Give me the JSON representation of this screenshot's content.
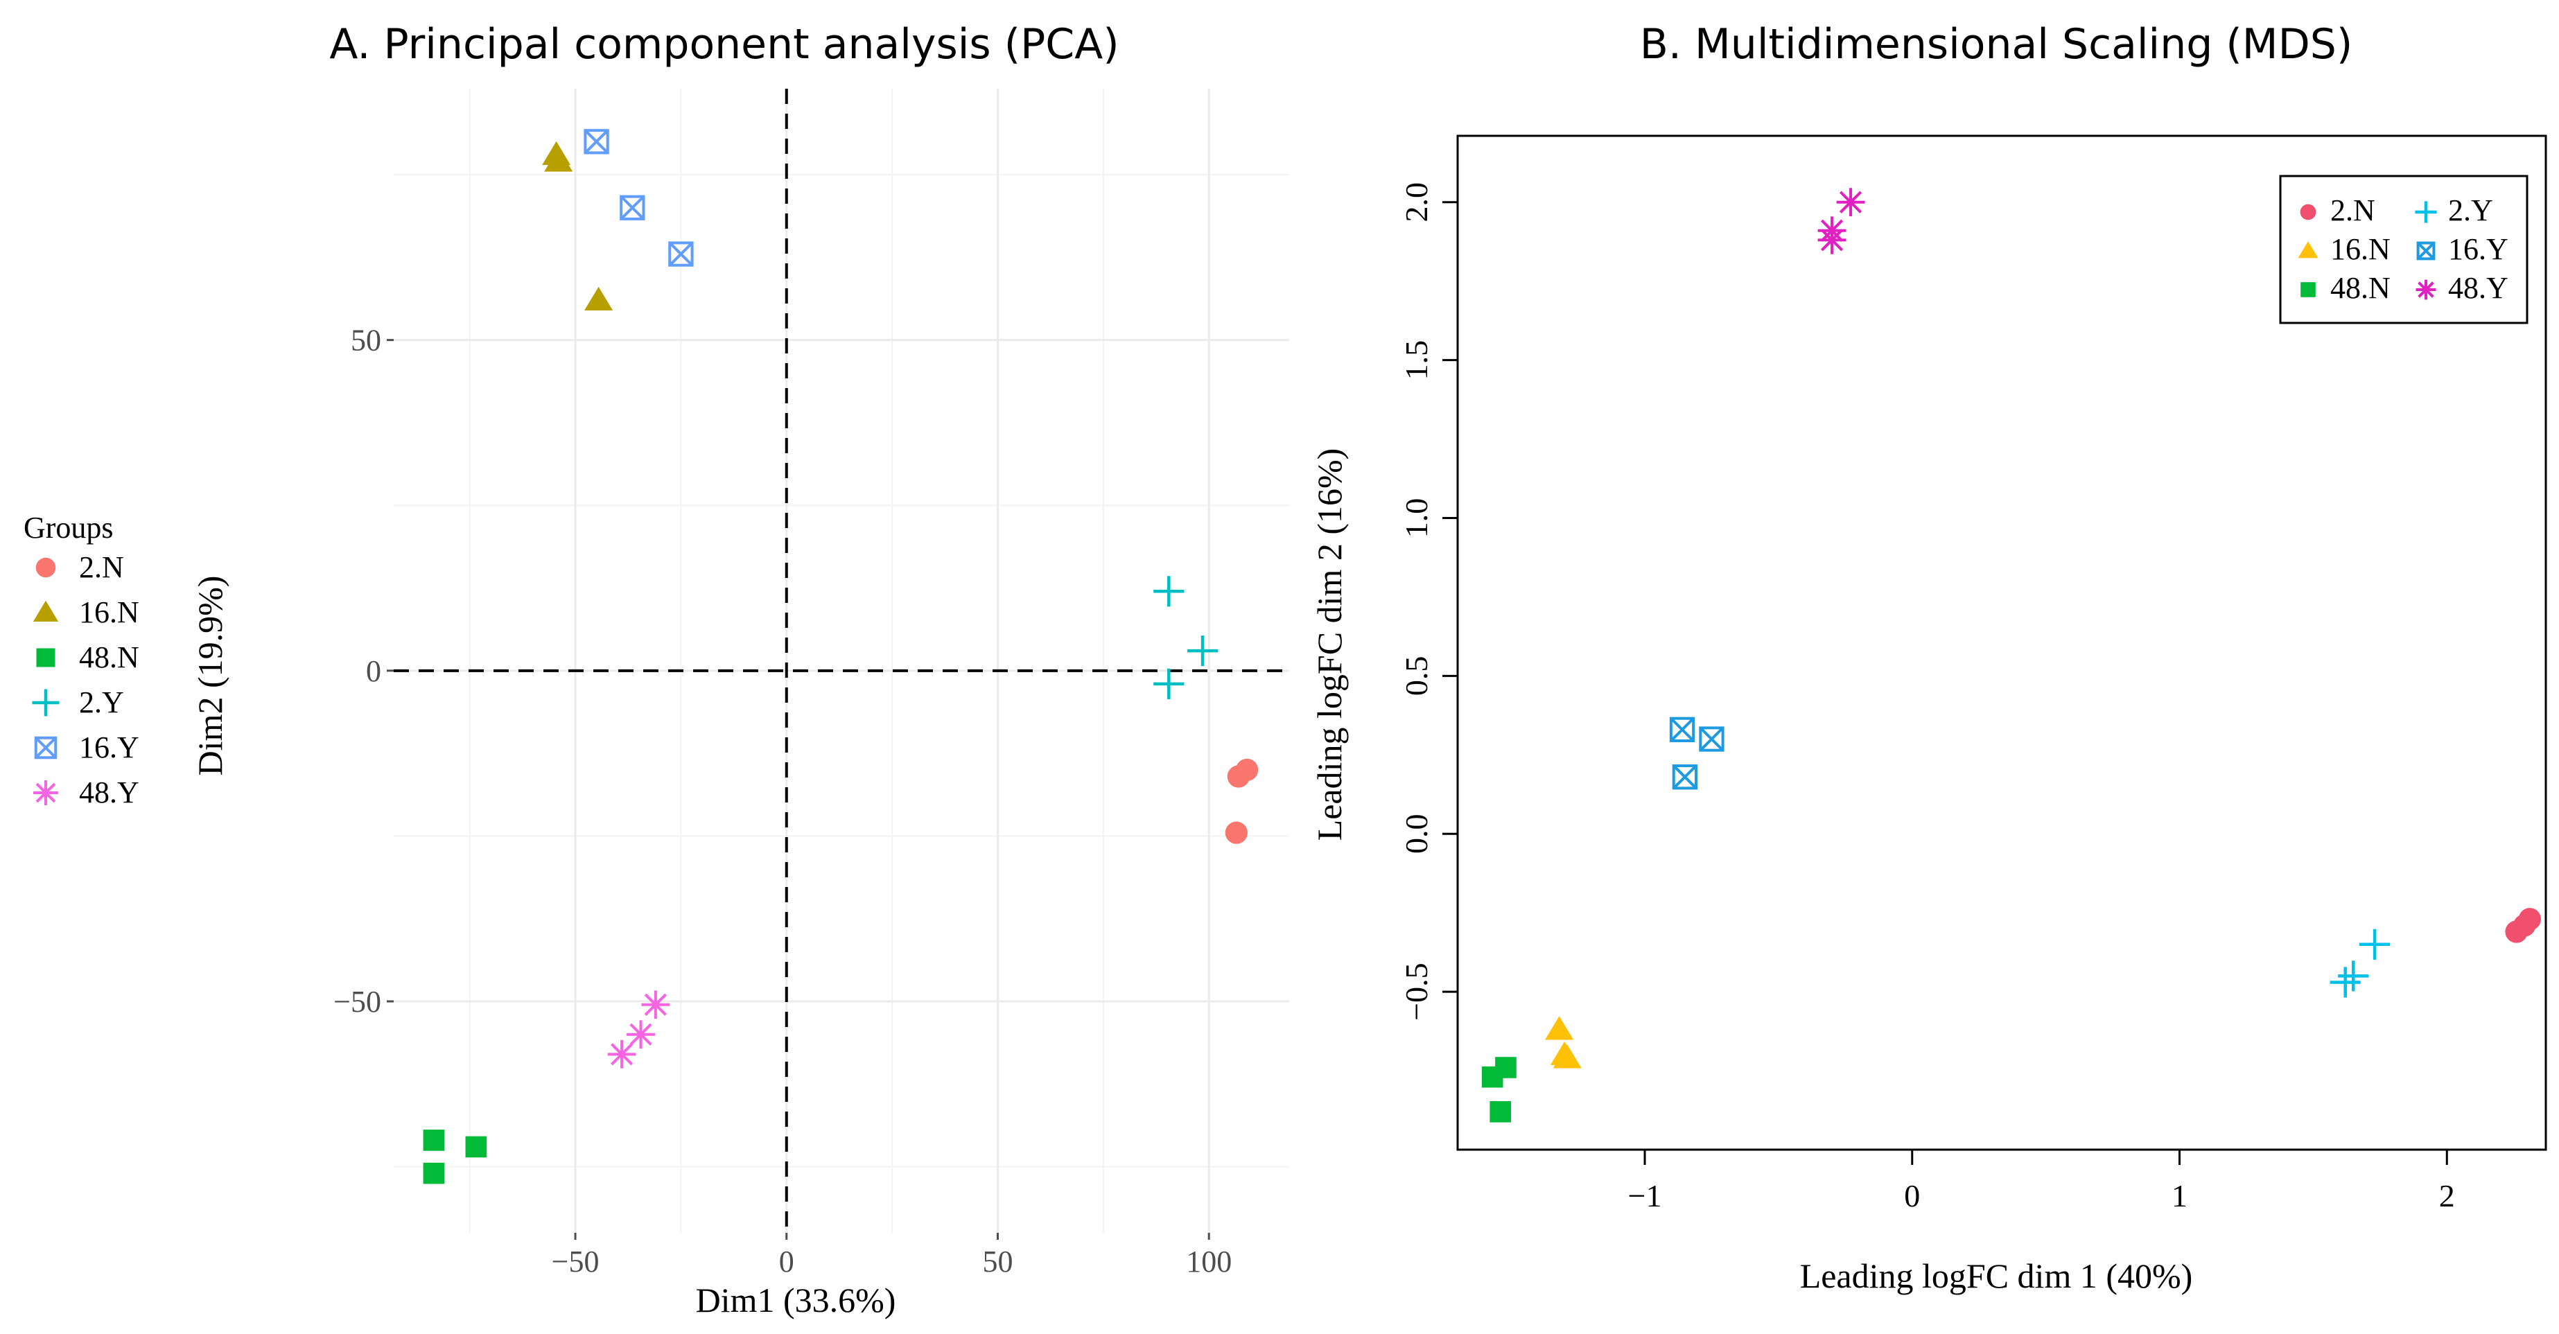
{
  "colors": {
    "2.N_pca": "#F8766D",
    "16.N_pca": "#B79F00",
    "48.N_pca": "#00BA38",
    "2.Y_pca": "#00BFC4",
    "16.Y_pca": "#619CFF",
    "48.Y_pca": "#F564E3",
    "2.N_mds": "#F0506E",
    "16.N_mds": "#FFC107",
    "48.N_mds": "#00BA38",
    "2.Y_mds": "#00BFE8",
    "16.Y_mds": "#1E9BE0",
    "48.Y_mds": "#E020C0"
  },
  "chart_data": [
    {
      "type": "scatter",
      "title": "A. Principal component analysis (PCA)",
      "xlabel": "Dim1 (33.6%)",
      "ylabel": "Dim2 (19.9%)",
      "xlim": [
        -93,
        119
      ],
      "ylim": [
        -85,
        88
      ],
      "xticks": [
        -50,
        0,
        50,
        100
      ],
      "yticks": [
        -50,
        0,
        50
      ],
      "xtick_labels": [
        "−50",
        "0",
        "50",
        "100"
      ],
      "ytick_labels": [
        "−50",
        "0",
        "50"
      ],
      "grid": true,
      "reference_lines": {
        "x": 0,
        "y": 0,
        "style": "dashed"
      },
      "legend": {
        "title": "Groups",
        "placement": "left"
      },
      "series": [
        {
          "name": "2.N",
          "marker": "circle",
          "points": [
            [
              107,
              -16
            ],
            [
              109,
              -15
            ],
            [
              106.5,
              -24.5
            ]
          ]
        },
        {
          "name": "16.N",
          "marker": "triangle",
          "points": [
            [
              -54.5,
              78
            ],
            [
              -54,
              77
            ],
            [
              -44.5,
              56
            ]
          ]
        },
        {
          "name": "48.N",
          "marker": "square",
          "points": [
            [
              -83.5,
              -71
            ],
            [
              -73.5,
              -72
            ],
            [
              -83.5,
              -76
            ]
          ]
        },
        {
          "name": "2.Y",
          "marker": "plus",
          "points": [
            [
              90.5,
              12
            ],
            [
              98.5,
              3
            ],
            [
              90.5,
              -2
            ]
          ]
        },
        {
          "name": "16.Y",
          "marker": "boxx",
          "points": [
            [
              -45,
              80
            ],
            [
              -36.5,
              70
            ],
            [
              -25,
              63
            ]
          ]
        },
        {
          "name": "48.Y",
          "marker": "star",
          "points": [
            [
              -31,
              -50.5
            ],
            [
              -34.5,
              -55
            ],
            [
              -39,
              -58
            ]
          ]
        }
      ]
    },
    {
      "type": "scatter",
      "title": "B. Multidimensional Scaling (MDS)",
      "xlabel": "Leading logFC dim 1 (40%)",
      "ylabel": "Leading logFC dim 2 (16%)",
      "xlim": [
        -1.7,
        2.37
      ],
      "ylim": [
        -1.0,
        2.21
      ],
      "xticks": [
        -1,
        0,
        1,
        2
      ],
      "yticks": [
        -0.5,
        0.0,
        0.5,
        1.0,
        1.5,
        2.0
      ],
      "xtick_labels": [
        "−1",
        "0",
        "1",
        "2"
      ],
      "ytick_labels": [
        "−0.5",
        "0.0",
        "0.5",
        "1.0",
        "1.5",
        "2.0"
      ],
      "grid": false,
      "legend": {
        "placement": "top-right",
        "columns": 2
      },
      "series": [
        {
          "name": "2.N",
          "marker": "circle",
          "points": [
            [
              2.26,
              -0.31
            ],
            [
              2.29,
              -0.29
            ],
            [
              2.31,
              -0.27
            ]
          ]
        },
        {
          "name": "16.N",
          "marker": "triangle",
          "points": [
            [
              -1.32,
              -0.62
            ],
            [
              -1.29,
              -0.71
            ],
            [
              -1.3,
              -0.7
            ]
          ]
        },
        {
          "name": "48.N",
          "marker": "square",
          "points": [
            [
              -1.57,
              -0.77
            ],
            [
              -1.52,
              -0.74
            ],
            [
              -1.54,
              -0.88
            ]
          ]
        },
        {
          "name": "2.Y",
          "marker": "plus",
          "points": [
            [
              1.73,
              -0.35
            ],
            [
              1.65,
              -0.45
            ],
            [
              1.62,
              -0.47
            ]
          ]
        },
        {
          "name": "16.Y",
          "marker": "boxx",
          "points": [
            [
              -0.86,
              0.33
            ],
            [
              -0.75,
              0.3
            ],
            [
              -0.85,
              0.18
            ]
          ]
        },
        {
          "name": "48.Y",
          "marker": "star",
          "points": [
            [
              -0.23,
              2.0
            ],
            [
              -0.3,
              1.91
            ],
            [
              -0.3,
              1.88
            ]
          ]
        }
      ]
    }
  ]
}
